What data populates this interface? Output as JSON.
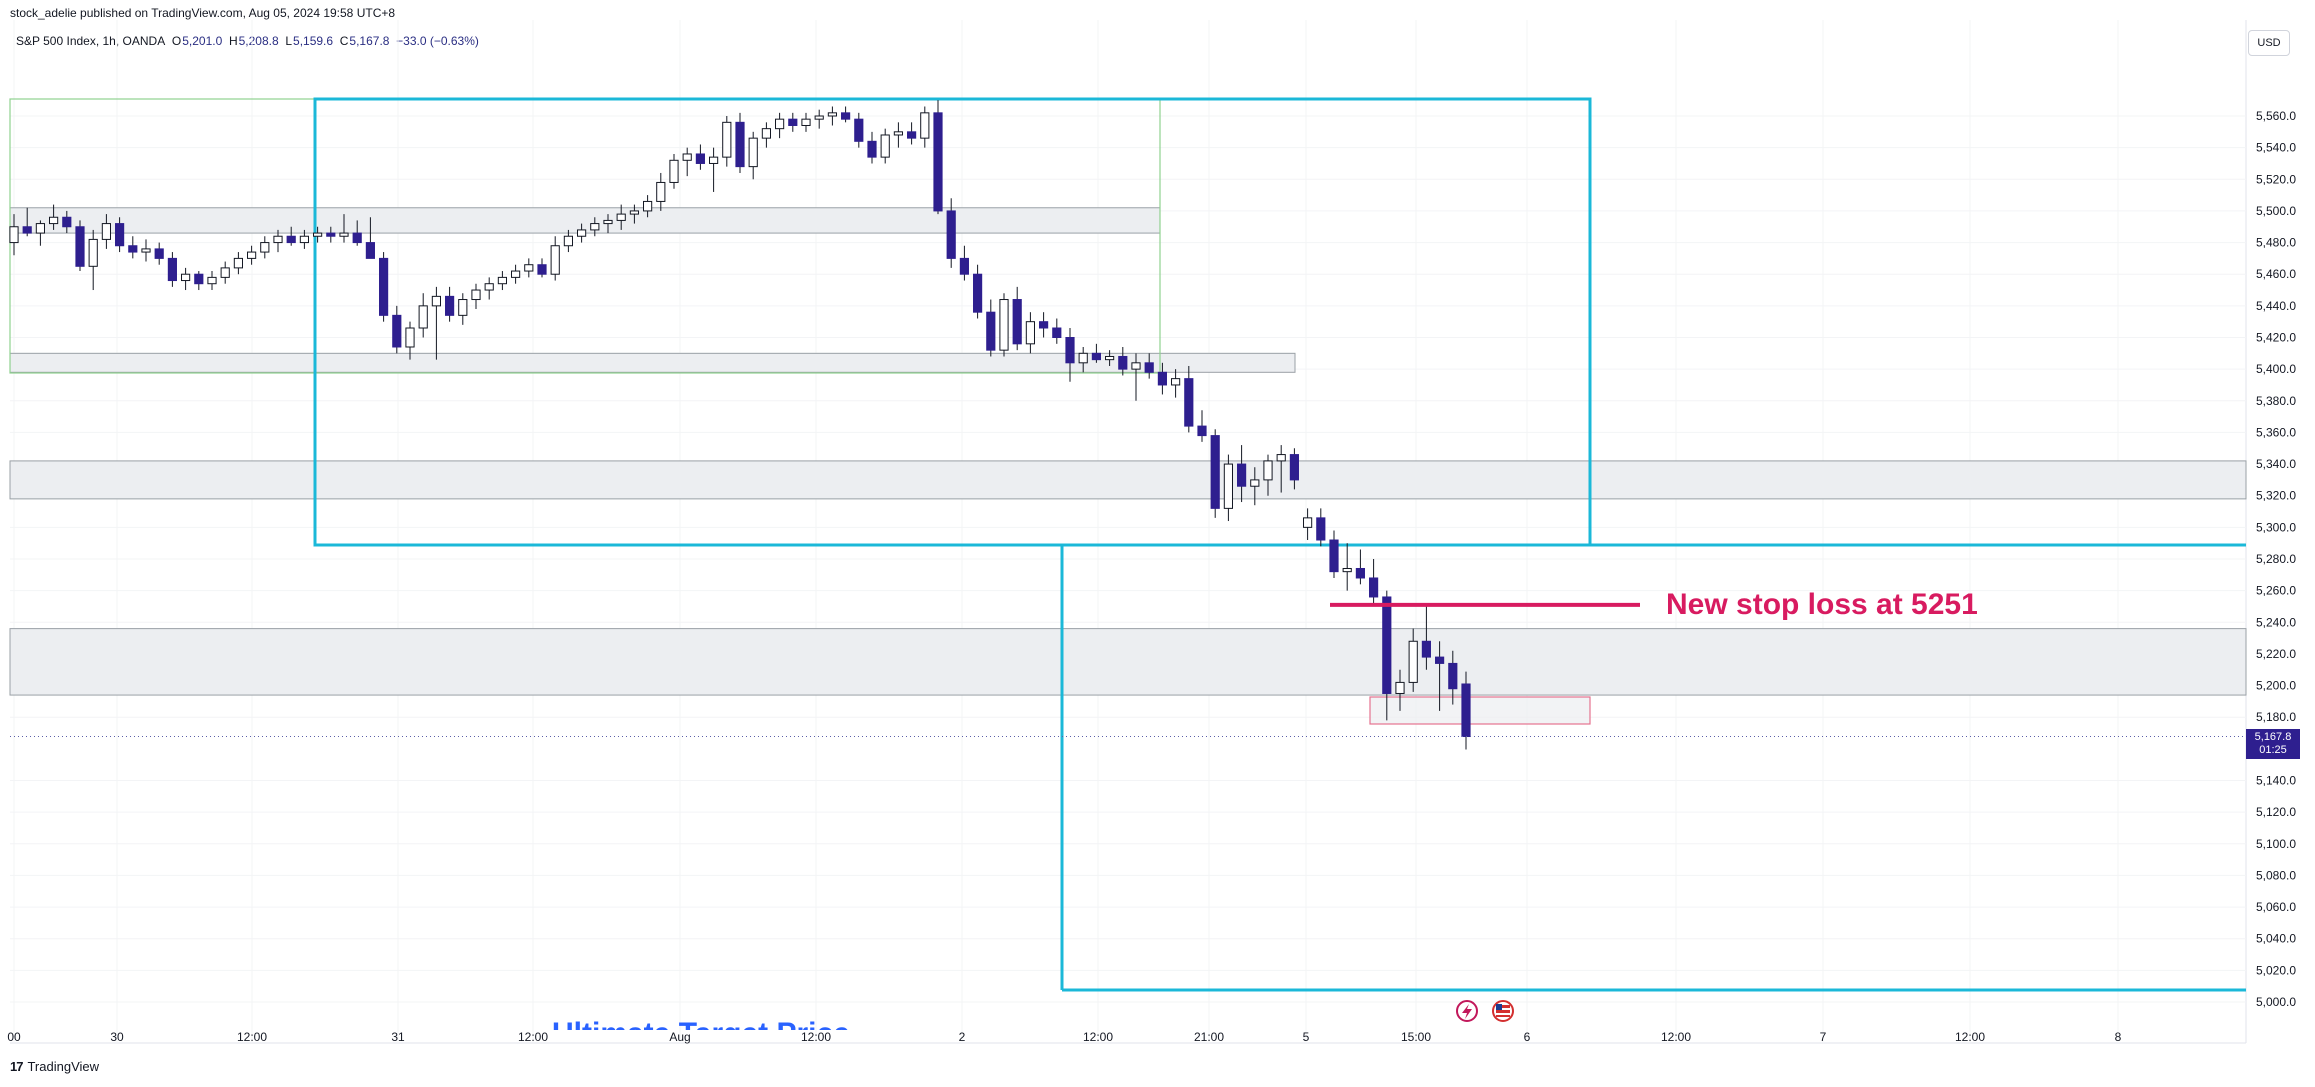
{
  "header": {
    "published": "stock_adelie published on TradingView.com, Aug 05, 2024 19:58 UTC+8",
    "symbol": "S&P 500 Index, 1h, OANDA",
    "open_label": "O",
    "open": "5,201.0",
    "high_label": "H",
    "high": "5,208.8",
    "low_label": "L",
    "low": "5,159.6",
    "close_label": "C",
    "close": "5,167.8",
    "change": "−33.0 (−0.63%)"
  },
  "currency": "USD",
  "last_price": {
    "value": "5,167.8",
    "countdown": "01:25"
  },
  "footer": {
    "logo_mark": "17",
    "logo_text": "TradingView"
  },
  "colors": {
    "candle_down": "#2e1f8f",
    "candle_up_fill": "#ffffff",
    "candle_border": "#131722",
    "box_cyan": "#1bb8d8",
    "box_green": "#8fd18f",
    "zone_fill": "#eceef1",
    "zone_border": "#9aa0a6",
    "stop_line": "#d81b60",
    "small_box": "#e57390"
  },
  "icons": [
    "lightning-event-icon",
    "us-flag-event-icon"
  ],
  "chart_data": {
    "type": "candlestick",
    "timeframe": "1h",
    "ylim": [
      4990,
      5590
    ],
    "y_ticks": [
      "5,560.0",
      "5,540.0",
      "5,520.0",
      "5,500.0",
      "5,480.0",
      "5,460.0",
      "5,440.0",
      "5,420.0",
      "5,400.0",
      "5,380.0",
      "5,360.0",
      "5,340.0",
      "5,320.0",
      "5,300.0",
      "5,280.0",
      "5,260.0",
      "5,240.0",
      "5,220.0",
      "5,200.0",
      "5,180.0",
      "5,140.0",
      "5,120.0",
      "5,100.0",
      "5,080.0",
      "5,060.0",
      "5,040.0",
      "5,020.0",
      "5,000.0"
    ],
    "x_ticks": [
      "00",
      "30",
      "12:00",
      "31",
      "12:00",
      "Aug",
      "12:00",
      "2",
      "12:00",
      "21:00",
      "5",
      "15:00",
      "6",
      "12:00",
      "7",
      "12:00",
      "8"
    ],
    "candles": [
      {
        "o": 5480,
        "h": 5498,
        "l": 5472,
        "c": 5490
      },
      {
        "o": 5490,
        "h": 5502,
        "l": 5484,
        "c": 5486
      },
      {
        "o": 5486,
        "h": 5494,
        "l": 5478,
        "c": 5492
      },
      {
        "o": 5492,
        "h": 5504,
        "l": 5488,
        "c": 5496
      },
      {
        "o": 5496,
        "h": 5500,
        "l": 5486,
        "c": 5490
      },
      {
        "o": 5490,
        "h": 5494,
        "l": 5462,
        "c": 5465
      },
      {
        "o": 5465,
        "h": 5488,
        "l": 5450,
        "c": 5482
      },
      {
        "o": 5482,
        "h": 5498,
        "l": 5476,
        "c": 5492
      },
      {
        "o": 5492,
        "h": 5496,
        "l": 5474,
        "c": 5478
      },
      {
        "o": 5478,
        "h": 5484,
        "l": 5470,
        "c": 5474
      },
      {
        "o": 5474,
        "h": 5482,
        "l": 5468,
        "c": 5476
      },
      {
        "o": 5476,
        "h": 5480,
        "l": 5466,
        "c": 5470
      },
      {
        "o": 5470,
        "h": 5474,
        "l": 5452,
        "c": 5456
      },
      {
        "o": 5456,
        "h": 5464,
        "l": 5450,
        "c": 5460
      },
      {
        "o": 5460,
        "h": 5462,
        "l": 5450,
        "c": 5454
      },
      {
        "o": 5454,
        "h": 5462,
        "l": 5450,
        "c": 5458
      },
      {
        "o": 5458,
        "h": 5468,
        "l": 5454,
        "c": 5464
      },
      {
        "o": 5464,
        "h": 5474,
        "l": 5460,
        "c": 5470
      },
      {
        "o": 5470,
        "h": 5478,
        "l": 5466,
        "c": 5474
      },
      {
        "o": 5474,
        "h": 5484,
        "l": 5470,
        "c": 5480
      },
      {
        "o": 5480,
        "h": 5488,
        "l": 5474,
        "c": 5484
      },
      {
        "o": 5484,
        "h": 5490,
        "l": 5478,
        "c": 5480
      },
      {
        "o": 5480,
        "h": 5488,
        "l": 5476,
        "c": 5484
      },
      {
        "o": 5484,
        "h": 5490,
        "l": 5480,
        "c": 5486
      },
      {
        "o": 5486,
        "h": 5490,
        "l": 5480,
        "c": 5484
      },
      {
        "o": 5484,
        "h": 5498,
        "l": 5480,
        "c": 5486
      },
      {
        "o": 5486,
        "h": 5494,
        "l": 5478,
        "c": 5480
      },
      {
        "o": 5480,
        "h": 5496,
        "l": 5474,
        "c": 5470
      },
      {
        "o": 5470,
        "h": 5474,
        "l": 5430,
        "c": 5434
      },
      {
        "o": 5434,
        "h": 5440,
        "l": 5410,
        "c": 5414
      },
      {
        "o": 5414,
        "h": 5430,
        "l": 5406,
        "c": 5426
      },
      {
        "o": 5426,
        "h": 5448,
        "l": 5420,
        "c": 5440
      },
      {
        "o": 5440,
        "h": 5452,
        "l": 5406,
        "c": 5446
      },
      {
        "o": 5446,
        "h": 5452,
        "l": 5430,
        "c": 5434
      },
      {
        "o": 5434,
        "h": 5448,
        "l": 5428,
        "c": 5444
      },
      {
        "o": 5444,
        "h": 5454,
        "l": 5438,
        "c": 5450
      },
      {
        "o": 5450,
        "h": 5458,
        "l": 5444,
        "c": 5454
      },
      {
        "o": 5454,
        "h": 5462,
        "l": 5450,
        "c": 5458
      },
      {
        "o": 5458,
        "h": 5466,
        "l": 5454,
        "c": 5462
      },
      {
        "o": 5462,
        "h": 5470,
        "l": 5458,
        "c": 5466
      },
      {
        "o": 5466,
        "h": 5470,
        "l": 5458,
        "c": 5460
      },
      {
        "o": 5460,
        "h": 5484,
        "l": 5456,
        "c": 5478
      },
      {
        "o": 5478,
        "h": 5488,
        "l": 5474,
        "c": 5484
      },
      {
        "o": 5484,
        "h": 5492,
        "l": 5480,
        "c": 5488
      },
      {
        "o": 5488,
        "h": 5496,
        "l": 5484,
        "c": 5492
      },
      {
        "o": 5492,
        "h": 5498,
        "l": 5486,
        "c": 5494
      },
      {
        "o": 5494,
        "h": 5504,
        "l": 5488,
        "c": 5498
      },
      {
        "o": 5498,
        "h": 5504,
        "l": 5492,
        "c": 5500
      },
      {
        "o": 5500,
        "h": 5510,
        "l": 5496,
        "c": 5506
      },
      {
        "o": 5506,
        "h": 5524,
        "l": 5500,
        "c": 5518
      },
      {
        "o": 5518,
        "h": 5536,
        "l": 5514,
        "c": 5532
      },
      {
        "o": 5532,
        "h": 5540,
        "l": 5522,
        "c": 5536
      },
      {
        "o": 5536,
        "h": 5542,
        "l": 5526,
        "c": 5530
      },
      {
        "o": 5530,
        "h": 5540,
        "l": 5512,
        "c": 5534
      },
      {
        "o": 5534,
        "h": 5560,
        "l": 5528,
        "c": 5556
      },
      {
        "o": 5556,
        "h": 5562,
        "l": 5524,
        "c": 5528
      },
      {
        "o": 5528,
        "h": 5550,
        "l": 5520,
        "c": 5546
      },
      {
        "o": 5546,
        "h": 5556,
        "l": 5540,
        "c": 5552
      },
      {
        "o": 5552,
        "h": 5562,
        "l": 5546,
        "c": 5558
      },
      {
        "o": 5558,
        "h": 5562,
        "l": 5550,
        "c": 5554
      },
      {
        "o": 5554,
        "h": 5562,
        "l": 5550,
        "c": 5558
      },
      {
        "o": 5558,
        "h": 5564,
        "l": 5552,
        "c": 5560
      },
      {
        "o": 5560,
        "h": 5566,
        "l": 5554,
        "c": 5562
      },
      {
        "o": 5562,
        "h": 5566,
        "l": 5556,
        "c": 5558
      },
      {
        "o": 5558,
        "h": 5562,
        "l": 5540,
        "c": 5544
      },
      {
        "o": 5544,
        "h": 5550,
        "l": 5530,
        "c": 5534
      },
      {
        "o": 5534,
        "h": 5552,
        "l": 5530,
        "c": 5548
      },
      {
        "o": 5548,
        "h": 5556,
        "l": 5540,
        "c": 5550
      },
      {
        "o": 5550,
        "h": 5556,
        "l": 5542,
        "c": 5546
      },
      {
        "o": 5546,
        "h": 5566,
        "l": 5540,
        "c": 5562
      },
      {
        "o": 5562,
        "h": 5570,
        "l": 5498,
        "c": 5500
      },
      {
        "o": 5500,
        "h": 5508,
        "l": 5464,
        "c": 5470
      },
      {
        "o": 5470,
        "h": 5478,
        "l": 5456,
        "c": 5460
      },
      {
        "o": 5460,
        "h": 5466,
        "l": 5432,
        "c": 5436
      },
      {
        "o": 5436,
        "h": 5444,
        "l": 5408,
        "c": 5412
      },
      {
        "o": 5412,
        "h": 5448,
        "l": 5408,
        "c": 5444
      },
      {
        "o": 5444,
        "h": 5452,
        "l": 5412,
        "c": 5416
      },
      {
        "o": 5416,
        "h": 5436,
        "l": 5410,
        "c": 5430
      },
      {
        "o": 5430,
        "h": 5436,
        "l": 5420,
        "c": 5426
      },
      {
        "o": 5426,
        "h": 5432,
        "l": 5416,
        "c": 5420
      },
      {
        "o": 5420,
        "h": 5426,
        "l": 5392,
        "c": 5404
      },
      {
        "o": 5404,
        "h": 5414,
        "l": 5398,
        "c": 5410
      },
      {
        "o": 5410,
        "h": 5416,
        "l": 5404,
        "c": 5406
      },
      {
        "o": 5406,
        "h": 5412,
        "l": 5402,
        "c": 5408
      },
      {
        "o": 5408,
        "h": 5414,
        "l": 5396,
        "c": 5400
      },
      {
        "o": 5400,
        "h": 5410,
        "l": 5380,
        "c": 5404
      },
      {
        "o": 5404,
        "h": 5410,
        "l": 5394,
        "c": 5398
      },
      {
        "o": 5398,
        "h": 5404,
        "l": 5384,
        "c": 5390
      },
      {
        "o": 5390,
        "h": 5400,
        "l": 5382,
        "c": 5394
      },
      {
        "o": 5394,
        "h": 5402,
        "l": 5360,
        "c": 5364
      },
      {
        "o": 5364,
        "h": 5374,
        "l": 5354,
        "c": 5358
      },
      {
        "o": 5358,
        "h": 5362,
        "l": 5306,
        "c": 5312
      },
      {
        "o": 5312,
        "h": 5346,
        "l": 5304,
        "c": 5340
      },
      {
        "o": 5340,
        "h": 5352,
        "l": 5316,
        "c": 5326
      },
      {
        "o": 5326,
        "h": 5338,
        "l": 5314,
        "c": 5330
      },
      {
        "o": 5330,
        "h": 5346,
        "l": 5320,
        "c": 5342
      },
      {
        "o": 5342,
        "h": 5352,
        "l": 5322,
        "c": 5346
      },
      {
        "o": 5346,
        "h": 5350,
        "l": 5324,
        "c": 5330
      },
      {
        "o": 5300,
        "h": 5312,
        "l": 5292,
        "c": 5306
      },
      {
        "o": 5306,
        "h": 5312,
        "l": 5288,
        "c": 5292
      },
      {
        "o": 5292,
        "h": 5298,
        "l": 5268,
        "c": 5272
      },
      {
        "o": 5272,
        "h": 5290,
        "l": 5260,
        "c": 5274
      },
      {
        "o": 5274,
        "h": 5286,
        "l": 5264,
        "c": 5268
      },
      {
        "o": 5268,
        "h": 5280,
        "l": 5250,
        "c": 5256
      },
      {
        "o": 5256,
        "h": 5260,
        "l": 5178,
        "c": 5195
      },
      {
        "o": 5195,
        "h": 5210,
        "l": 5184,
        "c": 5202
      },
      {
        "o": 5202,
        "h": 5236,
        "l": 5196,
        "c": 5228
      },
      {
        "o": 5228,
        "h": 5250,
        "l": 5210,
        "c": 5218
      },
      {
        "o": 5218,
        "h": 5228,
        "l": 5184,
        "c": 5214
      },
      {
        "o": 5214,
        "h": 5222,
        "l": 5188,
        "c": 5198
      },
      {
        "o": 5201,
        "h": 5208.8,
        "l": 5159.6,
        "c": 5167.8
      }
    ],
    "zones": [
      {
        "from": 5486,
        "to": 5502
      },
      {
        "from": 5398,
        "to": 5410
      },
      {
        "from": 5318,
        "to": 5342
      },
      {
        "from": 5194,
        "to": 5236
      }
    ],
    "annotation": {
      "text": "New stop loss at 5251",
      "price": 5251
    },
    "partial_text": "Ultimate Target Price"
  }
}
